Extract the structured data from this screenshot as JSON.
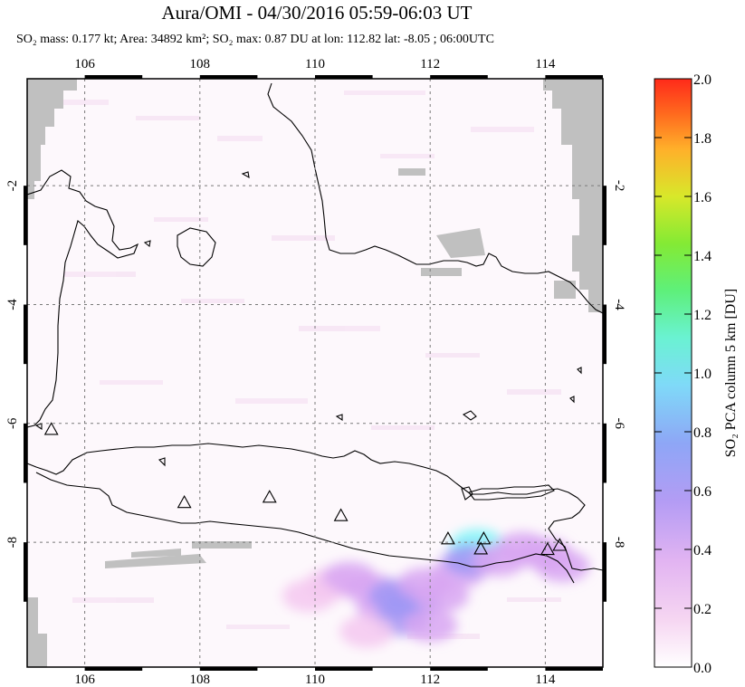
{
  "title": "Aura/OMI - 04/30/2016 05:59-06:03 UT",
  "subtitle": "SO₂ mass: 0.177 kt; Area: 34892 km²; SO₂ max: 0.87 DU at lon: 112.82 lat: -8.05 ; 06:00UTC",
  "chart_data": {
    "type": "heatmap",
    "title": "Aura/OMI - 04/30/2016 05:59-06:03 UT",
    "xlim": [
      105,
      115
    ],
    "ylim": [
      -10.1,
      -0.2
    ],
    "x_ticks": [
      "106",
      "108",
      "110",
      "112",
      "114"
    ],
    "x_tick_values": [
      106,
      108,
      110,
      112,
      114
    ],
    "y_ticks": [
      "-2",
      "-4",
      "-6",
      "-8"
    ],
    "y_tick_values": [
      -2,
      -4,
      -6,
      -8
    ],
    "grid": true,
    "colorbar": {
      "label": "SO₂ PCA column 5 km [DU]",
      "range": [
        0.0,
        2.0
      ],
      "ticks": [
        "0.0",
        "0.2",
        "0.4",
        "0.6",
        "0.8",
        "1.0",
        "1.2",
        "1.4",
        "1.6",
        "1.8",
        "2.0"
      ],
      "colors": [
        "#ffffff",
        "#f4c8f0",
        "#d8a6f2",
        "#a098f4",
        "#7fb0f6",
        "#7ff6f8",
        "#5ff0a0",
        "#66e82c",
        "#d4e82a",
        "#ffb92a",
        "#ff6a1e",
        "#ff2a1a"
      ]
    },
    "so2_max": {
      "value": 0.87,
      "lon": 112.82,
      "lat": -8.05
    },
    "plume_cells": [
      {
        "lon": 110.3,
        "lat": -8.7,
        "v": 0.2
      },
      {
        "lon": 110.6,
        "lat": -8.6,
        "v": 0.3
      },
      {
        "lon": 111.0,
        "lat": -8.8,
        "v": 0.35
      },
      {
        "lon": 111.2,
        "lat": -9.1,
        "v": 0.45
      },
      {
        "lon": 111.4,
        "lat": -8.9,
        "v": 0.5
      },
      {
        "lon": 111.5,
        "lat": -9.3,
        "v": 0.55
      },
      {
        "lon": 111.7,
        "lat": -9.0,
        "v": 0.6
      },
      {
        "lon": 111.9,
        "lat": -8.7,
        "v": 0.45
      },
      {
        "lon": 112.2,
        "lat": -8.9,
        "v": 0.4
      },
      {
        "lon": 112.5,
        "lat": -8.5,
        "v": 0.45
      },
      {
        "lon": 112.82,
        "lat": -8.05,
        "v": 0.87
      },
      {
        "lon": 112.7,
        "lat": -8.3,
        "v": 0.6
      },
      {
        "lon": 113.2,
        "lat": -8.3,
        "v": 0.4
      },
      {
        "lon": 113.6,
        "lat": -8.1,
        "v": 0.35
      },
      {
        "lon": 114.0,
        "lat": -8.2,
        "v": 0.4
      },
      {
        "lon": 114.3,
        "lat": -8.4,
        "v": 0.3
      },
      {
        "lon": 110.9,
        "lat": -9.5,
        "v": 0.25
      },
      {
        "lon": 112.0,
        "lat": -9.4,
        "v": 0.3
      },
      {
        "lon": 109.9,
        "lat": -8.9,
        "v": 0.15
      }
    ],
    "volcanoes": [
      {
        "lon": 105.42,
        "lat": -6.1
      },
      {
        "lon": 107.73,
        "lat": -7.33
      },
      {
        "lon": 109.21,
        "lat": -7.24
      },
      {
        "lon": 110.45,
        "lat": -7.55
      },
      {
        "lon": 112.31,
        "lat": -7.94
      },
      {
        "lon": 112.93,
        "lat": -7.94
      },
      {
        "lon": 112.88,
        "lat": -8.11
      },
      {
        "lon": 114.04,
        "lat": -8.12
      },
      {
        "lon": 114.25,
        "lat": -8.05
      }
    ]
  }
}
